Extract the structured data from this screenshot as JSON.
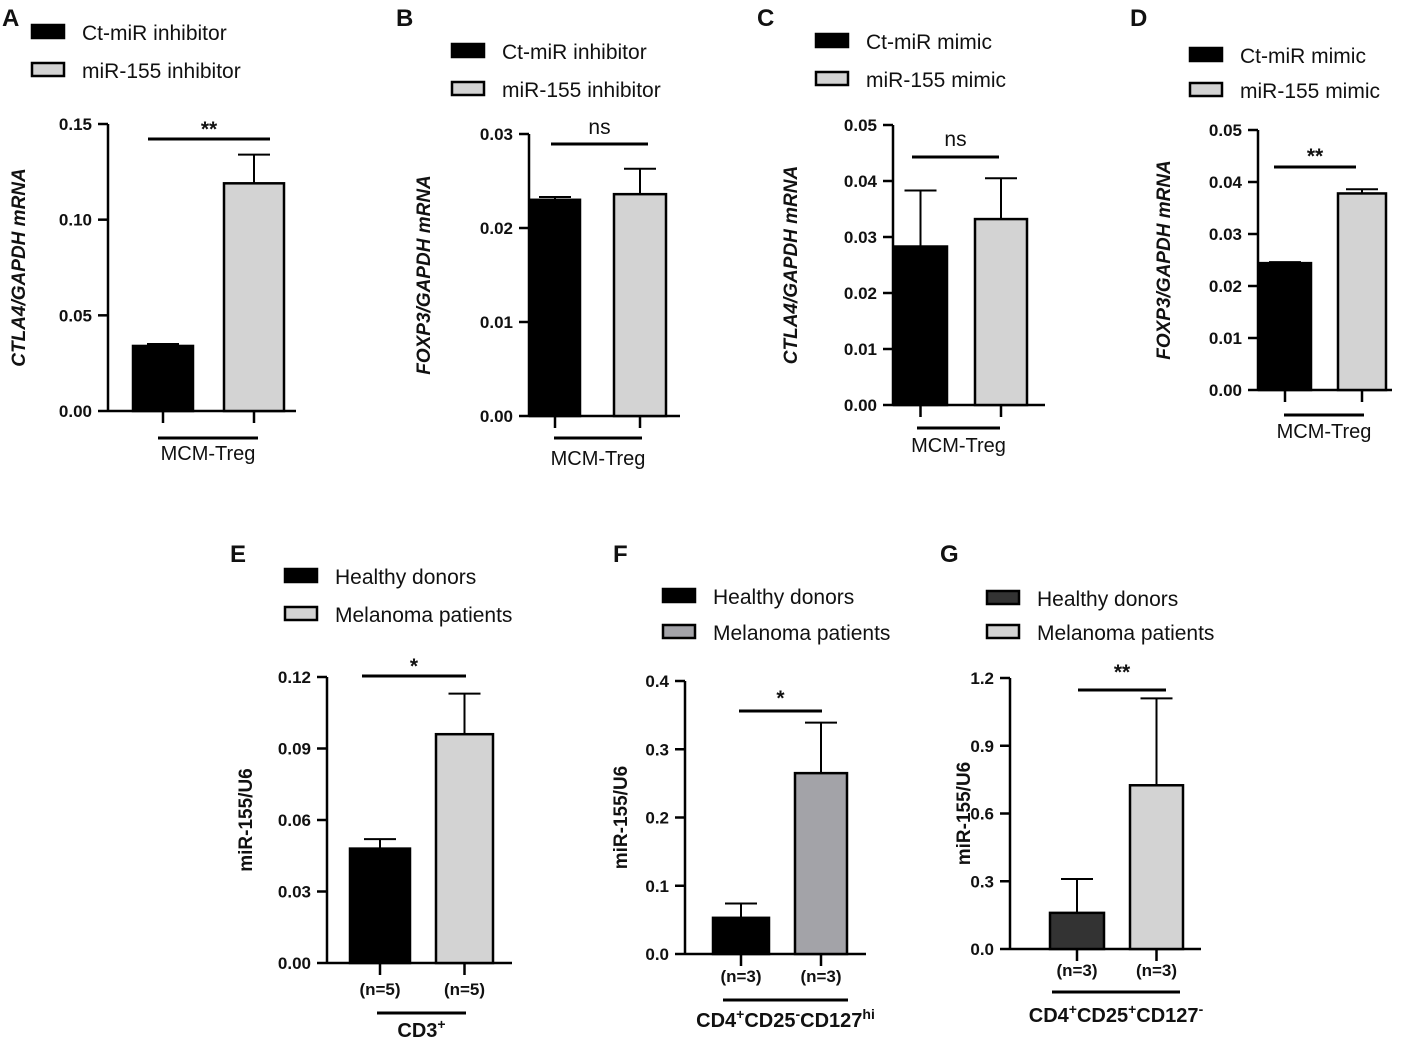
{
  "figure": {
    "description_free": true
  },
  "chart_data": [
    {
      "panel": "A",
      "type": "bar",
      "ylabel": "CTLA4/GAPDH mRNA",
      "ylabel_italic": true,
      "ylim": [
        0,
        0.15
      ],
      "yticks": [
        "0.00",
        "0.05",
        "0.10",
        "0.15"
      ],
      "ytick_values": [
        0,
        0.05,
        0.1,
        0.15
      ],
      "group_label": "MCM-Treg",
      "group_sup": "",
      "significance": "**",
      "series": [
        {
          "name": "Ct-miR inhibitor",
          "value": 0.034,
          "error": 0.001,
          "color": "#000000",
          "n_label": ""
        },
        {
          "name": "miR-155 inhibitor",
          "value": 0.119,
          "error": 0.015,
          "color": "#d3d3d3",
          "n_label": ""
        }
      ]
    },
    {
      "panel": "B",
      "type": "bar",
      "ylabel": "FOXP3/GAPDH mRNA",
      "ylabel_italic": true,
      "ylim": [
        0,
        0.03
      ],
      "yticks": [
        "0.00",
        "0.01",
        "0.02",
        "0.03"
      ],
      "ytick_values": [
        0,
        0.01,
        0.02,
        0.03
      ],
      "group_label": "MCM-Treg",
      "group_sup": "",
      "significance": "ns",
      "series": [
        {
          "name": "Ct-miR inhibitor",
          "value": 0.023,
          "error": 0.0003,
          "color": "#000000",
          "n_label": ""
        },
        {
          "name": "miR-155 inhibitor",
          "value": 0.0236,
          "error": 0.0027,
          "color": "#d3d3d3",
          "n_label": ""
        }
      ]
    },
    {
      "panel": "C",
      "type": "bar",
      "ylabel": "CTLA4/GAPDH mRNA",
      "ylabel_italic": true,
      "ylim": [
        0,
        0.05
      ],
      "yticks": [
        "0.00",
        "0.01",
        "0.02",
        "0.03",
        "0.04",
        "0.05"
      ],
      "ytick_values": [
        0,
        0.01,
        0.02,
        0.03,
        0.04,
        0.05
      ],
      "group_label": "MCM-Treg",
      "group_sup": "",
      "significance": "ns",
      "series": [
        {
          "name": "Ct-miR mimic",
          "value": 0.0283,
          "error": 0.01,
          "color": "#000000",
          "n_label": ""
        },
        {
          "name": "miR-155 mimic",
          "value": 0.0332,
          "error": 0.0073,
          "color": "#d3d3d3",
          "n_label": ""
        }
      ]
    },
    {
      "panel": "D",
      "type": "bar",
      "ylabel": "FOXP3/GAPDH mRNA",
      "ylabel_italic": true,
      "ylim": [
        0,
        0.05
      ],
      "yticks": [
        "0.00",
        "0.01",
        "0.02",
        "0.03",
        "0.04",
        "0.05"
      ],
      "ytick_values": [
        0,
        0.01,
        0.02,
        0.03,
        0.04,
        0.05
      ],
      "group_label": "MCM-Treg",
      "group_sup": "",
      "significance": "**",
      "series": [
        {
          "name": "Ct-miR mimic",
          "value": 0.0244,
          "error": 0.0002,
          "color": "#000000",
          "n_label": ""
        },
        {
          "name": "miR-155 mimic",
          "value": 0.0378,
          "error": 0.0008,
          "color": "#d3d3d3",
          "n_label": ""
        }
      ]
    },
    {
      "panel": "E",
      "type": "bar",
      "ylabel": "miR-155/U6",
      "ylabel_italic": false,
      "ylim": [
        0,
        0.12
      ],
      "yticks": [
        "0.00",
        "0.03",
        "0.06",
        "0.09",
        "0.12"
      ],
      "ytick_values": [
        0,
        0.03,
        0.06,
        0.09,
        0.12
      ],
      "group_label": "CD3",
      "group_sup": "+",
      "significance": "*",
      "series": [
        {
          "name": "Healthy donors",
          "value": 0.048,
          "error": 0.004,
          "color": "#000000",
          "n_label": "(n=5)"
        },
        {
          "name": "Melanoma patients",
          "value": 0.096,
          "error": 0.017,
          "color": "#d3d3d3",
          "n_label": "(n=5)"
        }
      ]
    },
    {
      "panel": "F",
      "type": "bar",
      "ylabel": "miR-155/U6",
      "ylabel_italic": false,
      "ylim": [
        0,
        0.4
      ],
      "yticks": [
        "0.0",
        "0.1",
        "0.2",
        "0.3",
        "0.4"
      ],
      "ytick_values": [
        0,
        0.1,
        0.2,
        0.3,
        0.4
      ],
      "group_label": "CD4+CD25-CD127hi",
      "group_parts": [
        [
          "CD4",
          ""
        ],
        [
          "+",
          "sup"
        ],
        [
          "CD25",
          ""
        ],
        [
          "-",
          "sup"
        ],
        [
          "CD127",
          ""
        ],
        [
          "hi",
          "sup"
        ]
      ],
      "significance": "*",
      "series": [
        {
          "name": "Healthy donors",
          "value": 0.053,
          "error": 0.021,
          "color": "#000000",
          "n_label": "(n=3)"
        },
        {
          "name": "Melanoma patients",
          "value": 0.265,
          "error": 0.074,
          "color": "#a3a3a8",
          "n_label": "(n=3)"
        }
      ]
    },
    {
      "panel": "G",
      "type": "bar",
      "ylabel": "miR-155/U6",
      "ylabel_italic": false,
      "ylim": [
        0,
        1.2
      ],
      "yticks": [
        "0.0",
        "0.3",
        "0.6",
        "0.9",
        "1.2"
      ],
      "ytick_values": [
        0,
        0.3,
        0.6,
        0.9,
        1.2
      ],
      "group_label": "CD4+CD25+CD127-",
      "group_parts": [
        [
          "CD4",
          ""
        ],
        [
          "+",
          "sup"
        ],
        [
          "CD25",
          ""
        ],
        [
          "+",
          "sup"
        ],
        [
          "CD127",
          ""
        ],
        [
          "-",
          "sup"
        ]
      ],
      "significance": "**",
      "series": [
        {
          "name": "Healthy donors",
          "value": 0.16,
          "error": 0.15,
          "color": "#333333",
          "n_label": "(n=3)"
        },
        {
          "name": "Melanoma patients",
          "value": 0.725,
          "error": 0.385,
          "color": "#d3d3d3",
          "n_label": "(n=3)"
        }
      ]
    }
  ]
}
